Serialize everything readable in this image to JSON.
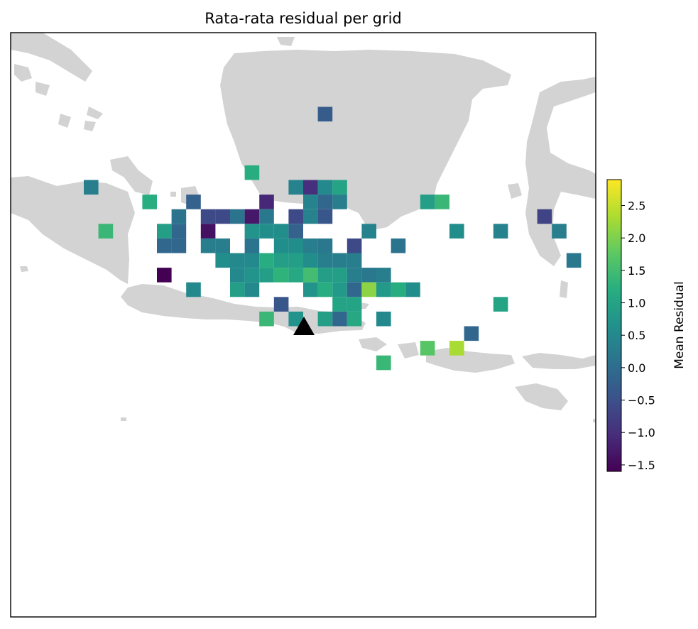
{
  "chart_data": {
    "type": "heatmap",
    "title": "Rata-rata residual per grid",
    "colorbar": {
      "label": "Mean Residual",
      "min": -1.6,
      "max": 2.9,
      "ticks": [
        "2.5",
        "2.0",
        "1.5",
        "1.0",
        "0.5",
        "0.0",
        "−0.5",
        "−1.0",
        "−1.5"
      ],
      "tick_values": [
        2.5,
        2.0,
        1.5,
        1.0,
        0.5,
        0.0,
        -0.5,
        -1.0,
        -1.5
      ],
      "colormap": "viridis"
    },
    "grid": {
      "origin_col": 0,
      "origin_row": 0,
      "cells": [
        {
          "col": 21,
          "row": 5,
          "value": -0.3
        },
        {
          "col": 16,
          "row": 9,
          "value": 1.2
        },
        {
          "col": 5,
          "row": 10,
          "value": 0.3
        },
        {
          "col": 19,
          "row": 10,
          "value": 0.4
        },
        {
          "col": 20,
          "row": 10,
          "value": -1.0
        },
        {
          "col": 21,
          "row": 10,
          "value": 0.5
        },
        {
          "col": 22,
          "row": 10,
          "value": 1.0
        },
        {
          "col": 9,
          "row": 11,
          "value": 1.2
        },
        {
          "col": 12,
          "row": 11,
          "value": -0.2
        },
        {
          "col": 17,
          "row": 11,
          "value": -1.1
        },
        {
          "col": 20,
          "row": 11,
          "value": 0.4
        },
        {
          "col": 21,
          "row": 11,
          "value": -0.1
        },
        {
          "col": 22,
          "row": 11,
          "value": 0.3
        },
        {
          "col": 28,
          "row": 11,
          "value": 0.9
        },
        {
          "col": 29,
          "row": 11,
          "value": 1.4
        },
        {
          "col": 11,
          "row": 12,
          "value": 0.1
        },
        {
          "col": 13,
          "row": 12,
          "value": -0.6
        },
        {
          "col": 14,
          "row": 12,
          "value": -0.6
        },
        {
          "col": 15,
          "row": 12,
          "value": 0.1
        },
        {
          "col": 16,
          "row": 12,
          "value": -1.3
        },
        {
          "col": 17,
          "row": 12,
          "value": 0.2
        },
        {
          "col": 19,
          "row": 12,
          "value": -0.6
        },
        {
          "col": 20,
          "row": 12,
          "value": 0.4
        },
        {
          "col": 21,
          "row": 12,
          "value": -0.4
        },
        {
          "col": 36,
          "row": 12,
          "value": -0.7
        },
        {
          "col": 6,
          "row": 13,
          "value": 1.4
        },
        {
          "col": 10,
          "row": 13,
          "value": 0.9
        },
        {
          "col": 11,
          "row": 13,
          "value": -0.1
        },
        {
          "col": 13,
          "row": 13,
          "value": -1.4
        },
        {
          "col": 16,
          "row": 13,
          "value": 0.7
        },
        {
          "col": 17,
          "row": 13,
          "value": 0.6
        },
        {
          "col": 18,
          "row": 13,
          "value": 0.6
        },
        {
          "col": 19,
          "row": 13,
          "value": -0.2
        },
        {
          "col": 24,
          "row": 13,
          "value": 0.4
        },
        {
          "col": 30,
          "row": 13,
          "value": 0.6
        },
        {
          "col": 33,
          "row": 13,
          "value": 0.4
        },
        {
          "col": 37,
          "row": 13,
          "value": 0.3
        },
        {
          "col": 10,
          "row": 14,
          "value": -0.1
        },
        {
          "col": 11,
          "row": 14,
          "value": -0.1
        },
        {
          "col": 13,
          "row": 14,
          "value": 0.3
        },
        {
          "col": 14,
          "row": 14,
          "value": 0.3
        },
        {
          "col": 16,
          "row": 14,
          "value": 0.1
        },
        {
          "col": 18,
          "row": 14,
          "value": 0.6
        },
        {
          "col": 19,
          "row": 14,
          "value": 0.6
        },
        {
          "col": 20,
          "row": 14,
          "value": 0.3
        },
        {
          "col": 21,
          "row": 14,
          "value": 0.2
        },
        {
          "col": 23,
          "row": 14,
          "value": -0.6
        },
        {
          "col": 26,
          "row": 14,
          "value": 0.1
        },
        {
          "col": 14,
          "row": 15,
          "value": 0.6
        },
        {
          "col": 15,
          "row": 15,
          "value": 0.5
        },
        {
          "col": 16,
          "row": 15,
          "value": 0.5
        },
        {
          "col": 17,
          "row": 15,
          "value": 1.2
        },
        {
          "col": 18,
          "row": 15,
          "value": 0.9
        },
        {
          "col": 19,
          "row": 15,
          "value": 0.9
        },
        {
          "col": 20,
          "row": 15,
          "value": 0.6
        },
        {
          "col": 21,
          "row": 15,
          "value": 0.3
        },
        {
          "col": 22,
          "row": 15,
          "value": 0.3
        },
        {
          "col": 23,
          "row": 15,
          "value": 0.3
        },
        {
          "col": 38,
          "row": 15,
          "value": 0.2
        },
        {
          "col": 10,
          "row": 16,
          "value": -1.6
        },
        {
          "col": 15,
          "row": 16,
          "value": 0.5
        },
        {
          "col": 16,
          "row": 16,
          "value": 0.7
        },
        {
          "col": 17,
          "row": 16,
          "value": 0.9
        },
        {
          "col": 18,
          "row": 16,
          "value": 1.3
        },
        {
          "col": 19,
          "row": 16,
          "value": 1.1
        },
        {
          "col": 20,
          "row": 16,
          "value": 1.5
        },
        {
          "col": 21,
          "row": 16,
          "value": 0.9
        },
        {
          "col": 22,
          "row": 16,
          "value": 0.9
        },
        {
          "col": 23,
          "row": 16,
          "value": 0.3
        },
        {
          "col": 24,
          "row": 16,
          "value": 0.2
        },
        {
          "col": 25,
          "row": 16,
          "value": 0.3
        },
        {
          "col": 12,
          "row": 17,
          "value": 0.5
        },
        {
          "col": 15,
          "row": 17,
          "value": 0.9
        },
        {
          "col": 16,
          "row": 17,
          "value": 0.5
        },
        {
          "col": 20,
          "row": 17,
          "value": 0.7
        },
        {
          "col": 21,
          "row": 17,
          "value": 1.2
        },
        {
          "col": 22,
          "row": 17,
          "value": 0.8
        },
        {
          "col": 23,
          "row": 17,
          "value": -0.1
        },
        {
          "col": 24,
          "row": 17,
          "value": 2.1
        },
        {
          "col": 25,
          "row": 17,
          "value": 0.8
        },
        {
          "col": 26,
          "row": 17,
          "value": 1.2
        },
        {
          "col": 27,
          "row": 17,
          "value": 0.6
        },
        {
          "col": 18,
          "row": 18,
          "value": -0.4
        },
        {
          "col": 22,
          "row": 18,
          "value": 1.0
        },
        {
          "col": 23,
          "row": 18,
          "value": 1.0
        },
        {
          "col": 33,
          "row": 18,
          "value": 1.0
        },
        {
          "col": 17,
          "row": 19,
          "value": 1.4
        },
        {
          "col": 19,
          "row": 19,
          "value": 0.7
        },
        {
          "col": 21,
          "row": 19,
          "value": 0.9
        },
        {
          "col": 22,
          "row": 19,
          "value": -0.1
        },
        {
          "col": 23,
          "row": 19,
          "value": 1.1
        },
        {
          "col": 25,
          "row": 19,
          "value": 0.5
        },
        {
          "col": 31,
          "row": 20,
          "value": -0.1
        },
        {
          "col": 28,
          "row": 21,
          "value": 1.7
        },
        {
          "col": 30,
          "row": 21,
          "value": 2.3
        },
        {
          "col": 25,
          "row": 22,
          "value": 1.4
        }
      ]
    },
    "station_marker": {
      "shape": "triangle",
      "color": "#000000"
    },
    "land_color": "#d3d3d3"
  }
}
